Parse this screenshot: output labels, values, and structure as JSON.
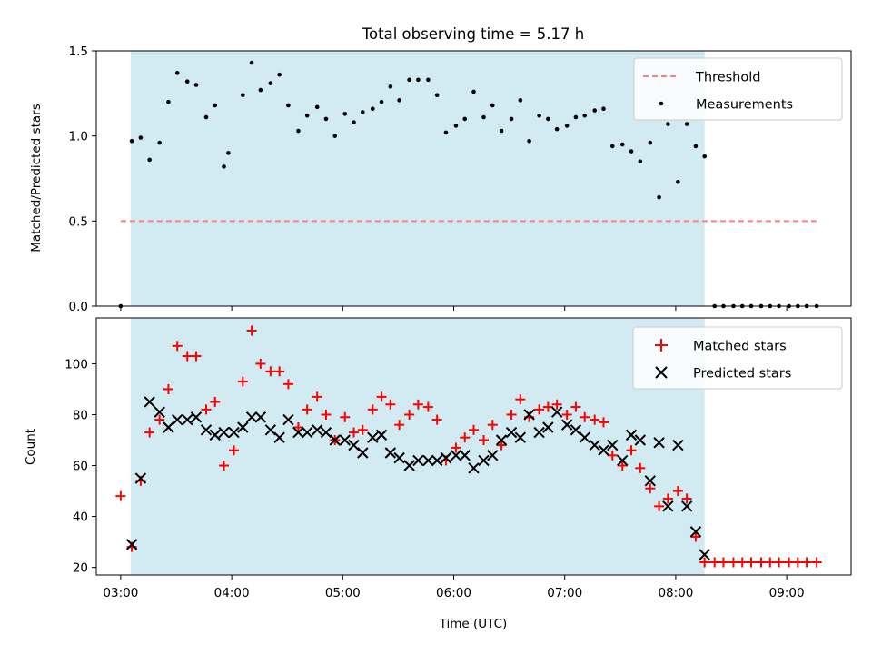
{
  "chart_data": [
    {
      "type": "scatter",
      "title": "Total observing time = 5.17 h",
      "ylabel": "Matched/Predicted stars",
      "ylim": [
        0,
        1.5
      ],
      "yticks": [
        "0.0",
        "0.5",
        "1.0",
        "1.5"
      ],
      "xlim_hours": [
        2.78,
        9.58
      ],
      "shaded_region_hours": [
        3.09,
        8.26
      ],
      "shaded_color": "#add8e6",
      "grid": false,
      "legend_placement": "top-right",
      "threshold": {
        "name": "Threshold",
        "value": 0.5,
        "x_range_hours": [
          3.0,
          9.3
        ],
        "color": "#ff7f7f",
        "style": "dashed"
      },
      "series": [
        {
          "name": "Measurements",
          "color": "#000000",
          "marker": "dot",
          "x": [
            3.0,
            3.1,
            3.18,
            3.26,
            3.35,
            3.43,
            3.51,
            3.6,
            3.68,
            3.77,
            3.85,
            3.93,
            3.97,
            4.1,
            4.18,
            4.26,
            4.35,
            4.43,
            4.51,
            4.6,
            4.68,
            4.77,
            4.85,
            4.93,
            5.02,
            5.1,
            5.18,
            5.27,
            5.35,
            5.43,
            5.51,
            5.6,
            5.68,
            5.77,
            5.85,
            5.93,
            6.02,
            6.1,
            6.18,
            6.27,
            6.35,
            6.43,
            6.52,
            6.6,
            6.68,
            6.77,
            6.85,
            6.93,
            7.02,
            7.1,
            7.18,
            7.27,
            7.35,
            7.43,
            7.52,
            7.6,
            7.68,
            7.77,
            7.85,
            7.93,
            8.02,
            8.1,
            8.18,
            8.26,
            8.35,
            8.43,
            8.52,
            8.6,
            8.68,
            8.77,
            8.85,
            8.93,
            9.02,
            9.1,
            9.18,
            9.27
          ],
          "y": [
            0.0,
            0.97,
            0.99,
            0.86,
            0.96,
            1.2,
            1.37,
            1.32,
            1.3,
            1.11,
            1.18,
            0.82,
            0.9,
            1.24,
            1.43,
            1.27,
            1.31,
            1.36,
            1.18,
            1.03,
            1.12,
            1.17,
            1.1,
            1.0,
            1.13,
            1.08,
            1.14,
            1.16,
            1.2,
            1.29,
            1.21,
            1.33,
            1.33,
            1.33,
            1.24,
            1.02,
            1.06,
            1.1,
            1.26,
            1.11,
            1.18,
            1.03,
            1.1,
            1.21,
            0.97,
            1.12,
            1.1,
            1.04,
            1.06,
            1.11,
            1.12,
            1.15,
            1.16,
            0.94,
            0.95,
            0.91,
            0.85,
            0.96,
            0.64,
            1.07,
            0.73,
            1.07,
            0.94,
            0.88,
            0.0,
            0.0,
            0.0,
            0.0,
            0.0,
            0.0,
            0.0,
            0.0,
            0.0,
            0.0,
            0.0,
            0.0
          ]
        }
      ]
    },
    {
      "type": "scatter",
      "xlabel": "Time (UTC)",
      "ylabel": "Count",
      "ylim": [
        17,
        118
      ],
      "yticks": [
        "20",
        "40",
        "60",
        "80",
        "100"
      ],
      "xlim_hours": [
        2.78,
        9.58
      ],
      "xticks": [
        "03:00",
        "04:00",
        "05:00",
        "06:00",
        "07:00",
        "08:00",
        "09:00"
      ],
      "shaded_region_hours": [
        3.09,
        8.26
      ],
      "shaded_color": "#add8e6",
      "grid": false,
      "legend_placement": "top-right",
      "series": [
        {
          "name": "Matched stars",
          "color": "#ff0000",
          "marker": "plus",
          "x": [
            3.0,
            3.1,
            3.18,
            3.26,
            3.35,
            3.43,
            3.51,
            3.6,
            3.68,
            3.77,
            3.85,
            3.93,
            4.02,
            4.1,
            4.18,
            4.26,
            4.35,
            4.43,
            4.51,
            4.6,
            4.68,
            4.77,
            4.85,
            4.93,
            5.02,
            5.1,
            5.18,
            5.27,
            5.35,
            5.43,
            5.51,
            5.6,
            5.68,
            5.77,
            5.85,
            5.93,
            6.02,
            6.1,
            6.18,
            6.27,
            6.35,
            6.43,
            6.52,
            6.6,
            6.68,
            6.77,
            6.85,
            6.93,
            7.02,
            7.1,
            7.18,
            7.27,
            7.35,
            7.43,
            7.52,
            7.6,
            7.68,
            7.77,
            7.85,
            7.93,
            8.02,
            8.1,
            8.18,
            8.26,
            8.35,
            8.43,
            8.52,
            8.6,
            8.68,
            8.77,
            8.85,
            8.93,
            9.02,
            9.1,
            9.18,
            9.27
          ],
          "y": [
            48,
            28,
            54,
            73,
            78,
            90,
            107,
            103,
            103,
            82,
            85,
            60,
            66,
            93,
            113,
            100,
            97,
            97,
            92,
            75,
            82,
            87,
            80,
            70,
            79,
            73,
            74,
            82,
            87,
            84,
            76,
            80,
            84,
            83,
            78,
            62,
            67,
            71,
            74,
            70,
            76,
            68,
            80,
            86,
            79,
            82,
            83,
            84,
            80,
            83,
            79,
            78,
            77,
            64,
            60,
            66,
            59,
            51,
            44,
            47,
            50,
            47,
            32,
            22,
            22,
            22,
            22,
            22,
            22,
            22,
            22,
            22,
            22,
            22,
            22,
            22
          ]
        },
        {
          "name": "Predicted stars",
          "color": "#000000",
          "marker": "x",
          "x": [
            3.1,
            3.18,
            3.26,
            3.35,
            3.43,
            3.51,
            3.6,
            3.68,
            3.77,
            3.85,
            3.93,
            4.02,
            4.1,
            4.18,
            4.26,
            4.35,
            4.43,
            4.51,
            4.6,
            4.68,
            4.77,
            4.85,
            4.93,
            5.02,
            5.1,
            5.18,
            5.27,
            5.35,
            5.43,
            5.51,
            5.6,
            5.68,
            5.77,
            5.85,
            5.93,
            6.02,
            6.1,
            6.18,
            6.27,
            6.35,
            6.43,
            6.52,
            6.6,
            6.68,
            6.77,
            6.85,
            6.93,
            7.02,
            7.1,
            7.18,
            7.27,
            7.35,
            7.43,
            7.52,
            7.6,
            7.68,
            7.77,
            7.85,
            7.93,
            8.02,
            8.1,
            8.18,
            8.26
          ],
          "y": [
            29,
            55,
            85,
            81,
            75,
            78,
            78,
            79,
            74,
            72,
            73,
            73,
            75,
            79,
            79,
            74,
            71,
            78,
            73,
            73,
            74,
            73,
            70,
            70,
            68,
            65,
            71,
            72,
            65,
            63,
            60,
            62,
            62,
            62,
            63,
            64,
            64,
            59,
            62,
            64,
            70,
            73,
            71,
            80,
            73,
            75,
            81,
            76,
            74,
            71,
            68,
            66,
            68,
            62,
            72,
            70,
            54,
            69,
            44,
            68,
            44,
            34,
            25
          ]
        }
      ]
    }
  ]
}
